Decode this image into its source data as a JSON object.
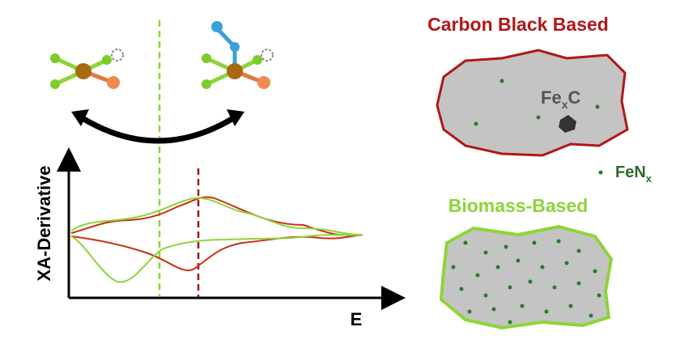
{
  "plot": {
    "y_axis_label": "XA-Derivative",
    "x_axis_label": "E"
  },
  "panels": {
    "carbon_black": {
      "title": "Carbon Black Based",
      "particle": {
        "base": "Fe",
        "sub": "x",
        "tail": "C"
      }
    },
    "legend": {
      "base": "FeN",
      "sub": "x"
    },
    "biomass": {
      "title": "Biomass-Based"
    }
  }
}
